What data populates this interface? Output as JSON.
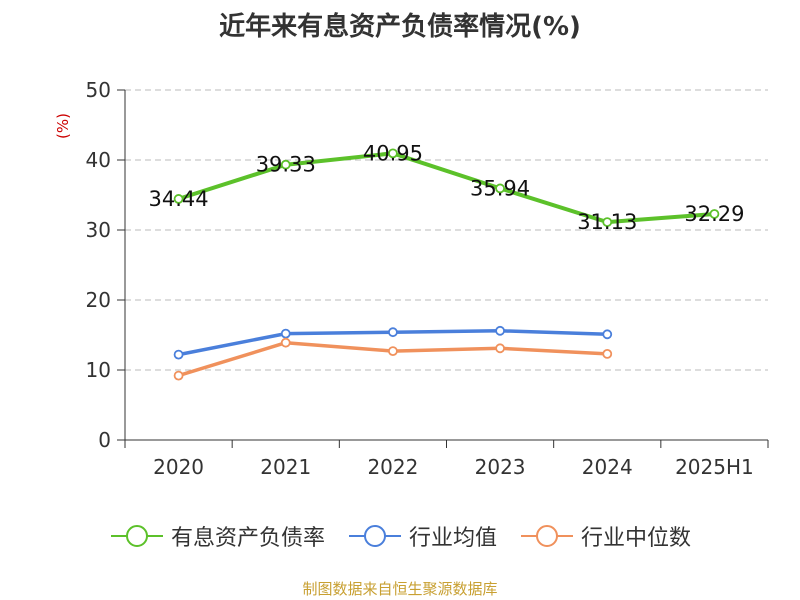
{
  "chart_data": {
    "type": "line",
    "title": "近年来有息资产负债率情况(%)",
    "ylabel": "(%)",
    "xlabel": "",
    "categories": [
      "2020",
      "2021",
      "2022",
      "2023",
      "2024",
      "2025H1"
    ],
    "ylim": [
      0,
      50
    ],
    "yticks": [
      0,
      10,
      20,
      30,
      40,
      50
    ],
    "grid": true,
    "legend_position": "bottom",
    "series": [
      {
        "name": "有息资产负债率",
        "color": "#5cc12a",
        "values": [
          34.44,
          39.33,
          40.95,
          35.94,
          31.13,
          32.29
        ],
        "data_labels": [
          "34.44",
          "39.33",
          "40.95",
          "35.94",
          "31.13",
          "32.29"
        ]
      },
      {
        "name": "行业均值",
        "color": "#4a7fdb",
        "values": [
          12.2,
          15.2,
          15.4,
          15.6,
          15.1,
          null
        ]
      },
      {
        "name": "行业中位数",
        "color": "#f0915c",
        "values": [
          9.2,
          13.9,
          12.7,
          13.1,
          12.3,
          null
        ]
      }
    ]
  },
  "source": "制图数据来自恒生聚源数据库"
}
